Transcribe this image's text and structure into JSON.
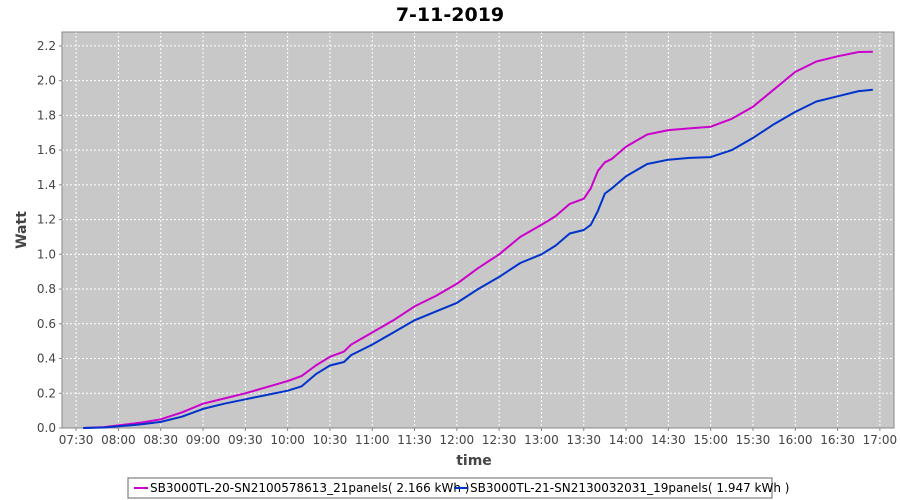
{
  "chart_data": {
    "type": "line",
    "title": "7-11-2019",
    "xlabel": "time",
    "ylabel": "Watt",
    "x_ticks": [
      "07:30",
      "08:00",
      "08:30",
      "09:00",
      "09:30",
      "10:00",
      "10:30",
      "11:00",
      "11:30",
      "12:00",
      "12:30",
      "13:00",
      "13:30",
      "14:00",
      "14:30",
      "15:00",
      "15:30",
      "16:00",
      "16:30",
      "17:00"
    ],
    "y_ticks": [
      "0.0",
      "0.2",
      "0.4",
      "0.6",
      "0.8",
      "1.0",
      "1.2",
      "1.4",
      "1.6",
      "1.8",
      "2.0",
      "2.2"
    ],
    "xlim": [
      "07:20",
      "17:10"
    ],
    "ylim": [
      0,
      2.28
    ],
    "grid": true,
    "legend_position": "bottom",
    "series": [
      {
        "name": "SB3000TL-20-SN2100578613_21panels( 2.166 kWh )",
        "color": "#cc00cc",
        "x": [
          "07:35",
          "07:50",
          "08:00",
          "08:15",
          "08:30",
          "08:45",
          "09:00",
          "09:15",
          "09:30",
          "09:45",
          "10:00",
          "10:10",
          "10:20",
          "10:30",
          "10:40",
          "10:45",
          "11:00",
          "11:15",
          "11:30",
          "11:45",
          "12:00",
          "12:15",
          "12:30",
          "12:45",
          "13:00",
          "13:10",
          "13:20",
          "13:30",
          "13:35",
          "13:40",
          "13:45",
          "13:50",
          "14:00",
          "14:15",
          "14:30",
          "14:45",
          "15:00",
          "15:15",
          "15:30",
          "15:45",
          "16:00",
          "16:15",
          "16:30",
          "16:45",
          "16:55"
        ],
        "y": [
          0.0,
          0.005,
          0.015,
          0.03,
          0.05,
          0.09,
          0.14,
          0.17,
          0.2,
          0.235,
          0.27,
          0.3,
          0.36,
          0.41,
          0.44,
          0.48,
          0.55,
          0.62,
          0.7,
          0.76,
          0.83,
          0.92,
          1.0,
          1.1,
          1.17,
          1.22,
          1.29,
          1.32,
          1.38,
          1.48,
          1.53,
          1.55,
          1.62,
          1.69,
          1.715,
          1.725,
          1.735,
          1.78,
          1.85,
          1.95,
          2.05,
          2.11,
          2.14,
          2.165,
          2.166
        ]
      },
      {
        "name": "SB3000TL-21-SN2130032031_19panels( 1.947 kWh )",
        "color": "#0033cc",
        "x": [
          "07:35",
          "07:50",
          "08:00",
          "08:15",
          "08:30",
          "08:45",
          "09:00",
          "09:15",
          "09:30",
          "09:45",
          "10:00",
          "10:10",
          "10:20",
          "10:30",
          "10:40",
          "10:45",
          "11:00",
          "11:15",
          "11:30",
          "11:45",
          "12:00",
          "12:15",
          "12:30",
          "12:45",
          "13:00",
          "13:10",
          "13:20",
          "13:30",
          "13:35",
          "13:40",
          "13:45",
          "13:50",
          "14:00",
          "14:15",
          "14:30",
          "14:45",
          "15:00",
          "15:15",
          "15:30",
          "15:45",
          "16:00",
          "16:15",
          "16:30",
          "16:45",
          "16:55"
        ],
        "y": [
          0.0,
          0.003,
          0.01,
          0.02,
          0.035,
          0.065,
          0.11,
          0.14,
          0.165,
          0.19,
          0.215,
          0.24,
          0.31,
          0.36,
          0.38,
          0.42,
          0.48,
          0.55,
          0.62,
          0.67,
          0.72,
          0.8,
          0.87,
          0.95,
          1.0,
          1.05,
          1.12,
          1.14,
          1.17,
          1.25,
          1.35,
          1.38,
          1.45,
          1.52,
          1.545,
          1.555,
          1.56,
          1.6,
          1.67,
          1.75,
          1.82,
          1.88,
          1.91,
          1.94,
          1.947
        ]
      }
    ]
  }
}
